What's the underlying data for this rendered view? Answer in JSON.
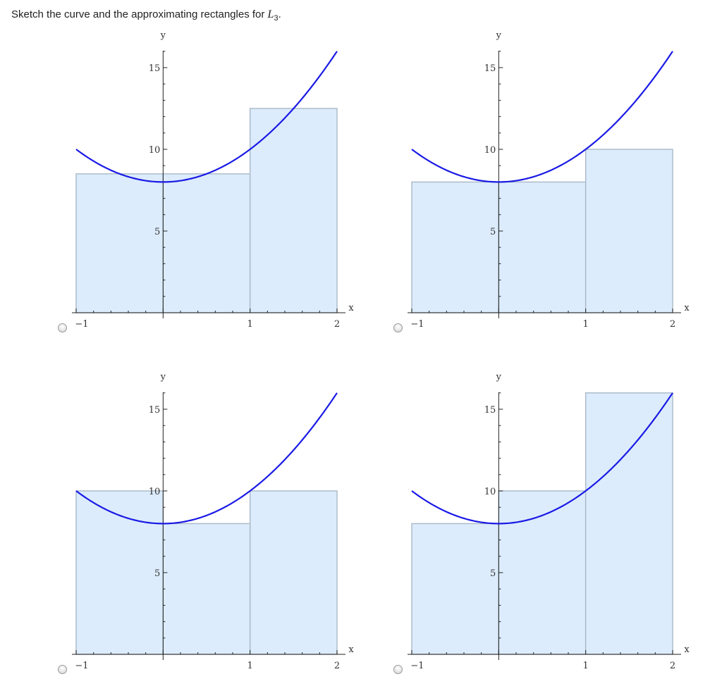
{
  "question": {
    "text_before": "Sketch the curve and the approximating rectangles for ",
    "var_letter": "L",
    "var_sub": "3",
    "text_after": "."
  },
  "chart_data": [
    {
      "type": "area",
      "xlabel": "x",
      "ylabel": "y",
      "xlim": [
        -1,
        2
      ],
      "ylim": [
        0,
        15
      ],
      "x_ticks": [
        "-1",
        "1",
        "2"
      ],
      "y_ticks": [
        "5",
        "10",
        "15"
      ],
      "curve": "y = 2x^2 + 8",
      "rectangles": [
        {
          "x0": -1,
          "x1": 0,
          "height": 8.5
        },
        {
          "x0": 0,
          "x1": 1,
          "height": 8.5
        },
        {
          "x0": 1,
          "x1": 2,
          "height": 12.5
        }
      ]
    },
    {
      "type": "area",
      "xlabel": "x",
      "ylabel": "y",
      "xlim": [
        -1,
        2
      ],
      "ylim": [
        0,
        15
      ],
      "x_ticks": [
        "-1",
        "1",
        "2"
      ],
      "y_ticks": [
        "5",
        "10",
        "15"
      ],
      "curve": "y = 2x^2 + 8",
      "rectangles": [
        {
          "x0": -1,
          "x1": 0,
          "height": 8
        },
        {
          "x0": 0,
          "x1": 1,
          "height": 8
        },
        {
          "x0": 1,
          "x1": 2,
          "height": 10
        }
      ]
    },
    {
      "type": "area",
      "xlabel": "x",
      "ylabel": "y",
      "xlim": [
        -1,
        2
      ],
      "ylim": [
        0,
        15
      ],
      "x_ticks": [
        "-1",
        "1",
        "2"
      ],
      "y_ticks": [
        "5",
        "10",
        "15"
      ],
      "curve": "y = 2x^2 + 8",
      "rectangles": [
        {
          "x0": -1,
          "x1": 0,
          "height": 10
        },
        {
          "x0": 0,
          "x1": 1,
          "height": 8
        },
        {
          "x0": 1,
          "x1": 2,
          "height": 10
        }
      ]
    },
    {
      "type": "area",
      "xlabel": "x",
      "ylabel": "y",
      "xlim": [
        -1,
        2
      ],
      "ylim": [
        0,
        15
      ],
      "x_ticks": [
        "-1",
        "1",
        "2"
      ],
      "y_ticks": [
        "5",
        "10",
        "15"
      ],
      "curve": "y = 2x^2 + 8",
      "rectangles": [
        {
          "x0": -1,
          "x1": 0,
          "height": 8
        },
        {
          "x0": 0,
          "x1": 1,
          "height": 10
        },
        {
          "x0": 1,
          "x1": 2,
          "height": 16
        }
      ]
    }
  ],
  "options": [
    {
      "selected": false
    },
    {
      "selected": false
    },
    {
      "selected": false
    },
    {
      "selected": false
    }
  ]
}
